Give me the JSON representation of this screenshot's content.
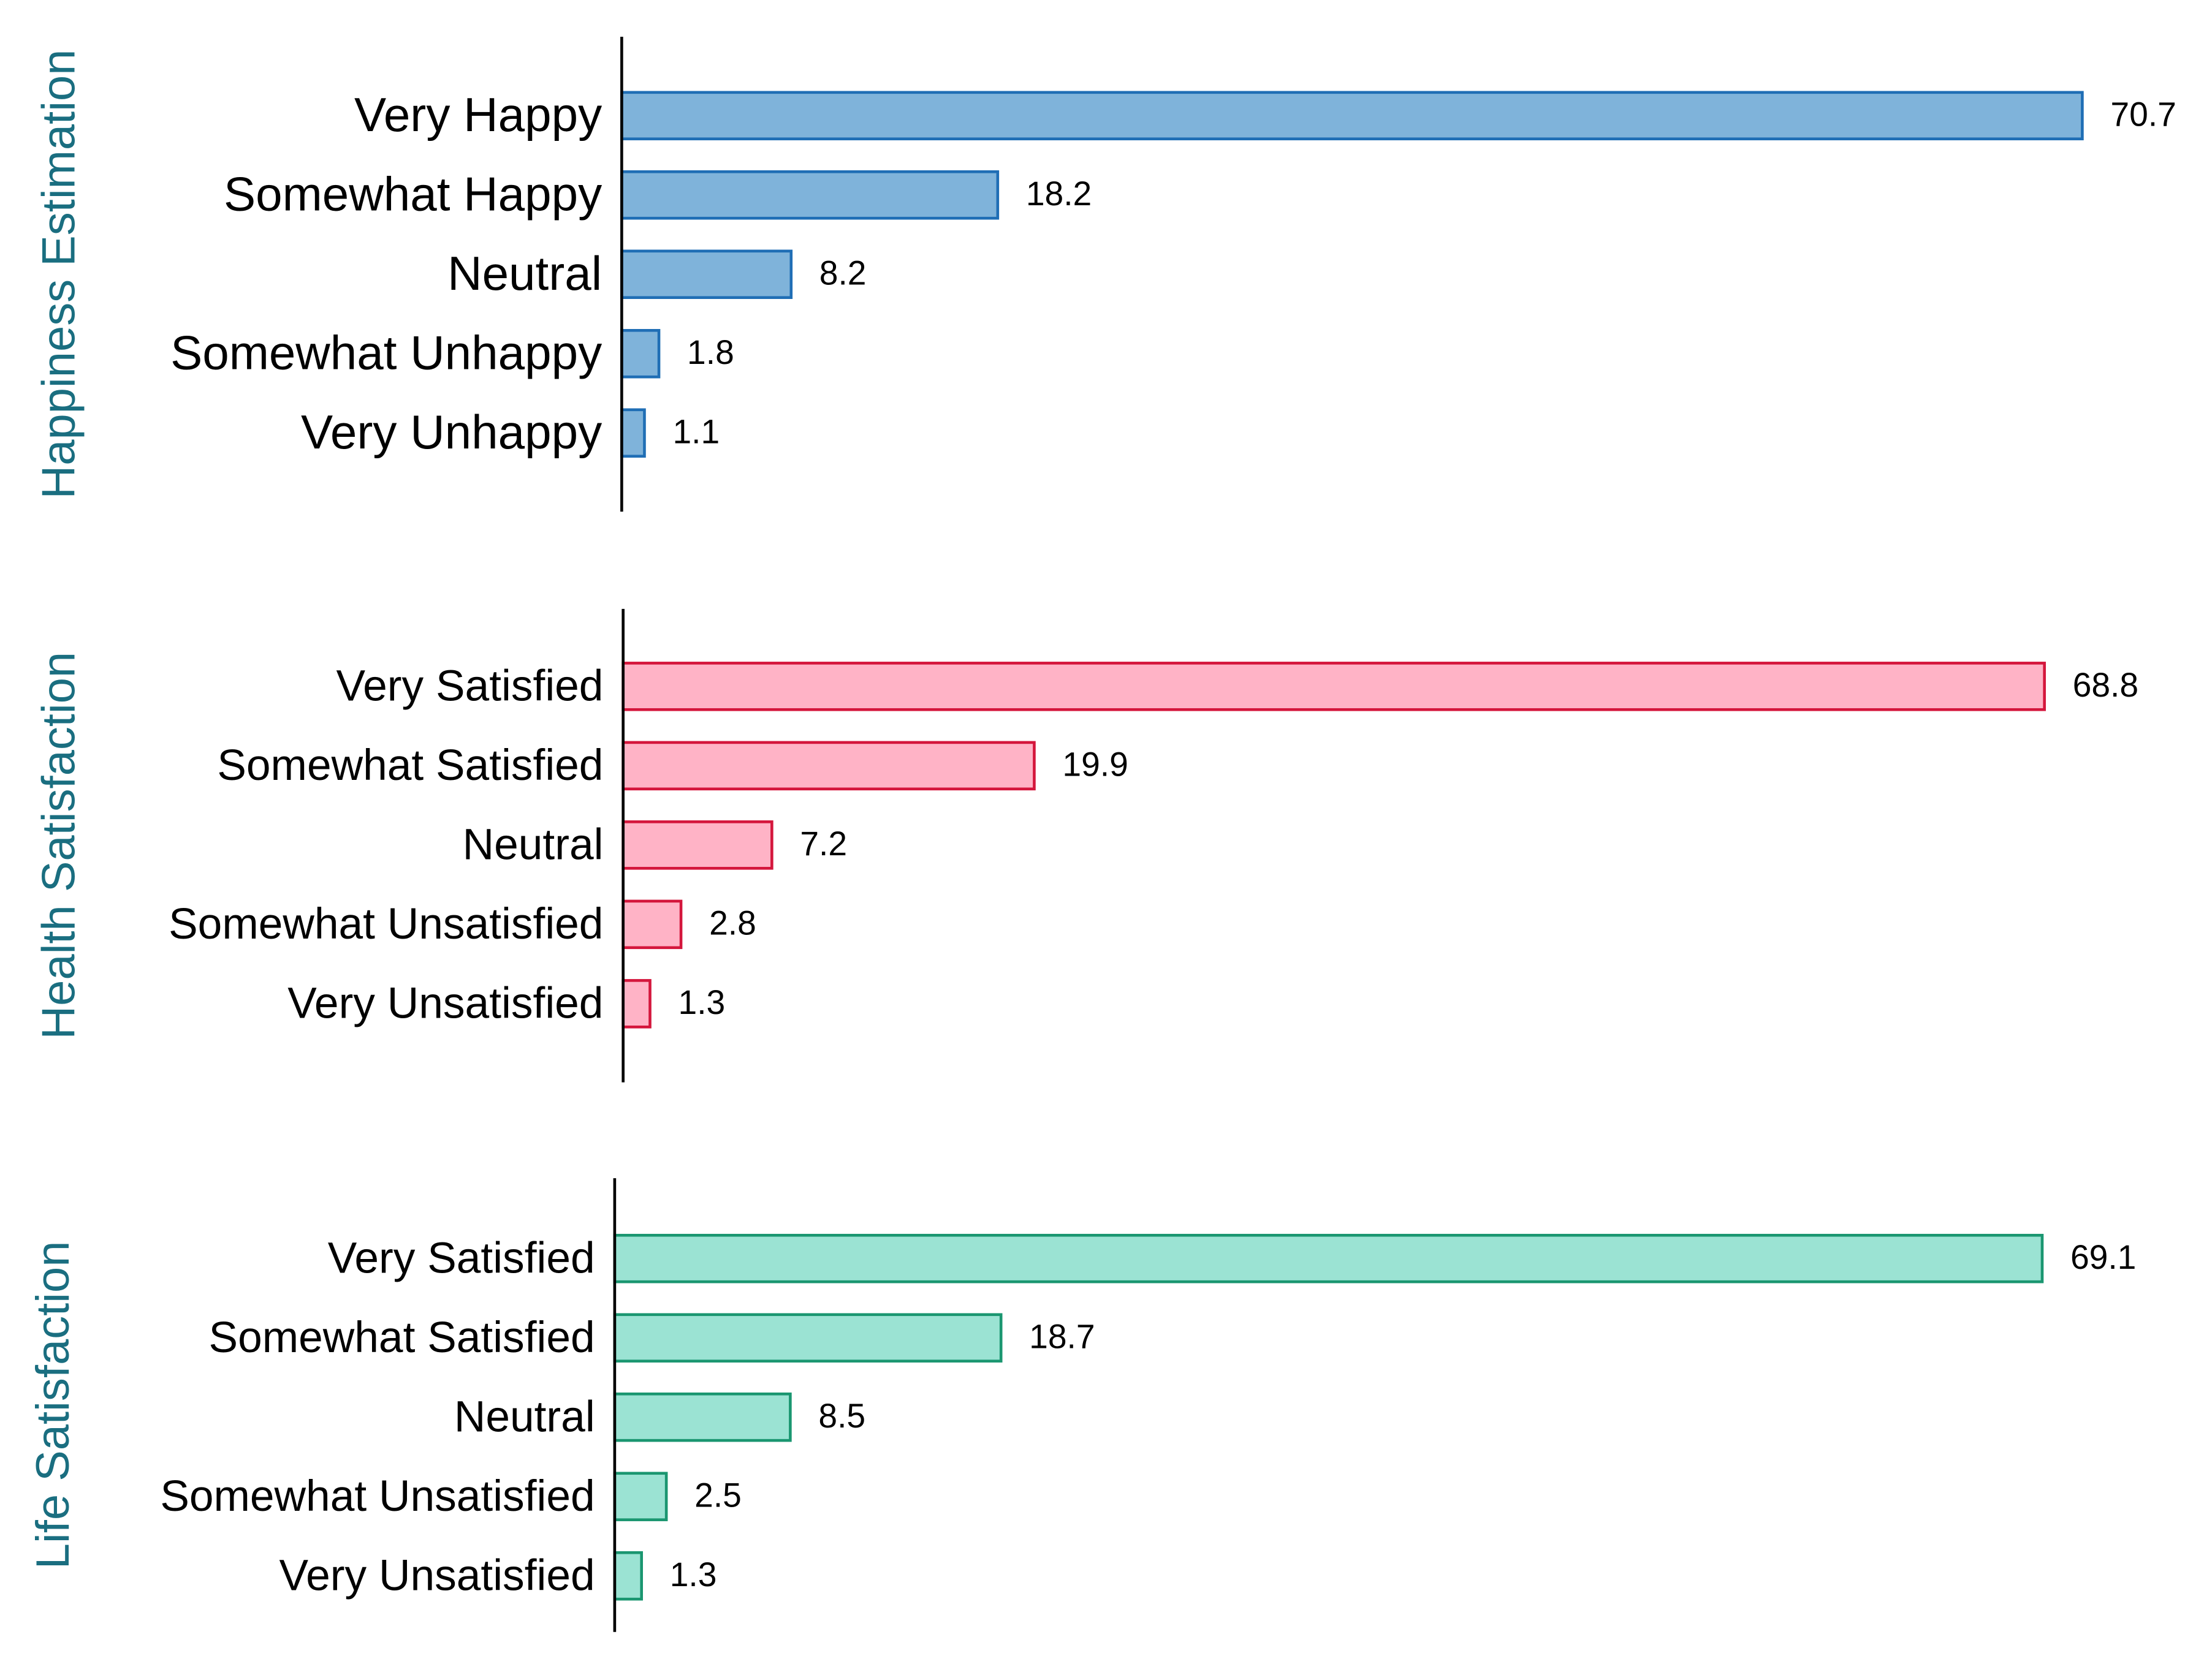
{
  "chart_data": [
    {
      "type": "bar",
      "orientation": "horizontal",
      "ylabel": "Happiness Estimation",
      "categories": [
        "Very Happy",
        "Somewhat Happy",
        "Neutral",
        "Somewhat Unhappy",
        "Very Unhappy"
      ],
      "values": [
        70.7,
        18.2,
        8.2,
        1.8,
        1.1
      ],
      "color": "#7fb3da",
      "edgecolor": "#1f6eb5"
    },
    {
      "type": "bar",
      "orientation": "horizontal",
      "ylabel": "Health Satisfaction",
      "categories": [
        "Very Satisfied",
        "Somewhat Satisfied",
        "Neutral",
        "Somewhat Unsatisfied",
        "Very Unsatisfied"
      ],
      "values": [
        68.8,
        19.9,
        7.2,
        2.8,
        1.3
      ],
      "color": "#ffb3c6",
      "edgecolor": "#d4163c"
    },
    {
      "type": "bar",
      "orientation": "horizontal",
      "ylabel": "Life Satisfaction",
      "categories": [
        "Very Satisfied",
        "Somewhat Satisfied",
        "Neutral",
        "Somewhat Unsatisfied",
        "Very Unsatisfied"
      ],
      "values": [
        69.1,
        18.7,
        8.5,
        2.5,
        1.3
      ],
      "color": "#9be3d3",
      "edgecolor": "#1a9670"
    }
  ]
}
